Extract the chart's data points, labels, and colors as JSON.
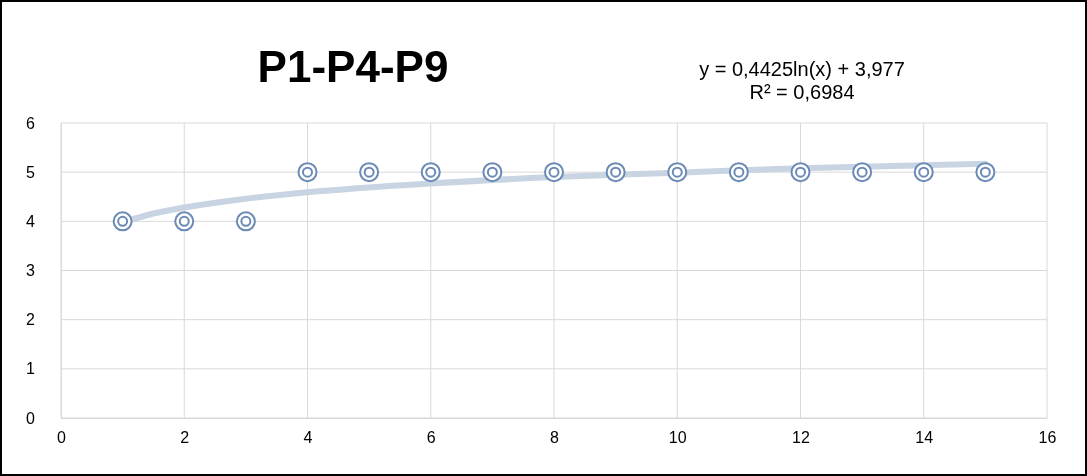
{
  "chart_data": {
    "type": "scatter",
    "title": "P1-P4-P9",
    "annotations": [
      "y = 0,4425ln(x) + 3,977",
      "R² = 0,6984"
    ],
    "series": [
      {
        "type": "line",
        "color": "#c9d4e3",
        "x": [
          1,
          1.5,
          2,
          3,
          4,
          6,
          8,
          10,
          12,
          15
        ],
        "values": [
          3.98,
          4.16,
          4.28,
          4.46,
          4.59,
          4.77,
          4.9,
          4.99,
          5.08,
          5.17
        ]
      },
      {
        "marker": "circle",
        "color": "#6a8ab5",
        "x": [
          1,
          2,
          3,
          4,
          5,
          6,
          7,
          8,
          9,
          10,
          11,
          12,
          13,
          14,
          15
        ],
        "values": [
          4,
          4,
          4,
          5,
          5,
          5,
          5,
          5,
          5,
          5,
          5,
          5,
          5,
          5,
          5
        ]
      }
    ],
    "xlim": [
      0,
      16
    ],
    "xticks": [
      0,
      2,
      4,
      6,
      8,
      10,
      12,
      14,
      16
    ],
    "ylim": [
      0,
      6
    ],
    "yticks": [
      0,
      1,
      2,
      3,
      4,
      5,
      6
    ],
    "grid": true
  }
}
